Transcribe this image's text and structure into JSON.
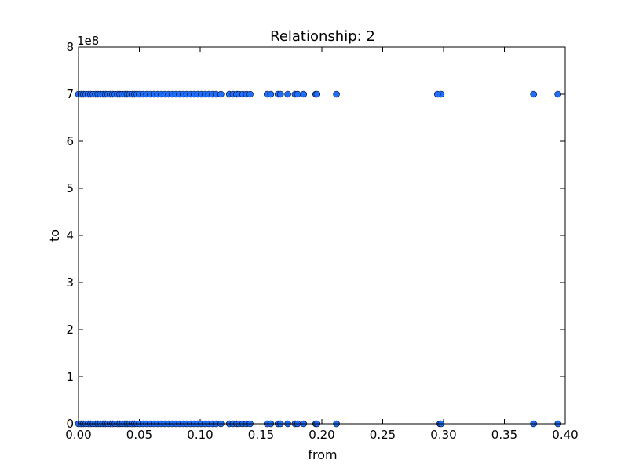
{
  "chart_data": {
    "type": "scatter",
    "title": "Relationship: 2",
    "xlabel": "from",
    "ylabel": "to",
    "offset_text": "1e8",
    "xlim": [
      0.0,
      0.4
    ],
    "ylim": [
      0,
      800000000
    ],
    "xticks": [
      "0.00",
      "0.05",
      "0.10",
      "0.15",
      "0.20",
      "0.25",
      "0.30",
      "0.35",
      "0.40"
    ],
    "yticks": [
      "0",
      "1",
      "2",
      "3",
      "4",
      "5",
      "6",
      "7",
      "8"
    ],
    "marker_color": "#1f6fff",
    "grid": false,
    "series": [
      {
        "x": [
          0.0,
          0.002,
          0.004,
          0.006,
          0.008,
          0.01,
          0.012,
          0.014,
          0.016,
          0.018,
          0.02,
          0.022,
          0.024,
          0.026,
          0.028,
          0.03,
          0.032,
          0.034,
          0.036,
          0.038,
          0.04,
          0.042,
          0.044,
          0.046,
          0.048,
          0.05,
          0.053,
          0.056,
          0.059,
          0.062,
          0.065,
          0.068,
          0.071,
          0.074,
          0.077,
          0.08,
          0.083,
          0.086,
          0.089,
          0.092,
          0.095,
          0.098,
          0.101,
          0.104,
          0.107,
          0.11,
          0.113,
          0.117,
          0.124,
          0.127,
          0.13,
          0.132,
          0.135,
          0.138,
          0.141,
          0.155,
          0.158,
          0.164,
          0.166,
          0.172,
          0.178,
          0.18,
          0.185,
          0.195,
          0.196,
          0.212,
          0.298,
          0.295,
          0.374,
          0.394,
          0.0,
          0.002,
          0.004,
          0.006,
          0.008,
          0.01,
          0.012,
          0.014,
          0.016,
          0.018,
          0.02,
          0.022,
          0.024,
          0.026,
          0.028,
          0.03,
          0.032,
          0.034,
          0.036,
          0.038,
          0.04,
          0.042,
          0.044,
          0.046,
          0.048,
          0.05,
          0.053,
          0.056,
          0.059,
          0.062,
          0.065,
          0.068,
          0.071,
          0.074,
          0.077,
          0.08,
          0.083,
          0.086,
          0.089,
          0.092,
          0.095,
          0.098,
          0.101,
          0.104,
          0.107,
          0.11,
          0.113,
          0.117,
          0.124,
          0.127,
          0.13,
          0.132,
          0.135,
          0.138,
          0.141,
          0.155,
          0.158,
          0.164,
          0.166,
          0.172,
          0.178,
          0.18,
          0.185,
          0.195,
          0.196,
          0.212,
          0.297,
          0.298,
          0.374,
          0.394
        ],
        "y": [
          700000000,
          700000000,
          700000000,
          700000000,
          700000000,
          700000000,
          700000000,
          700000000,
          700000000,
          700000000,
          700000000,
          700000000,
          700000000,
          700000000,
          700000000,
          700000000,
          700000000,
          700000000,
          700000000,
          700000000,
          700000000,
          700000000,
          700000000,
          700000000,
          700000000,
          700000000,
          700000000,
          700000000,
          700000000,
          700000000,
          700000000,
          700000000,
          700000000,
          700000000,
          700000000,
          700000000,
          700000000,
          700000000,
          700000000,
          700000000,
          700000000,
          700000000,
          700000000,
          700000000,
          700000000,
          700000000,
          700000000,
          700000000,
          700000000,
          700000000,
          700000000,
          700000000,
          700000000,
          700000000,
          700000000,
          700000000,
          700000000,
          700000000,
          700000000,
          700000000,
          700000000,
          700000000,
          700000000,
          700000000,
          700000000,
          700000000,
          700000000,
          700000000,
          700000000,
          700000000,
          0,
          0,
          0,
          0,
          0,
          0,
          0,
          0,
          0,
          0,
          0,
          0,
          0,
          0,
          0,
          0,
          0,
          0,
          0,
          0,
          0,
          0,
          0,
          0,
          0,
          0,
          0,
          0,
          0,
          0,
          0,
          0,
          0,
          0,
          0,
          0,
          0,
          0,
          0,
          0,
          0,
          0,
          0,
          0,
          0,
          0,
          0,
          0,
          0,
          0,
          0,
          0,
          0,
          0,
          0,
          0,
          0,
          0,
          0,
          0,
          0,
          0,
          0,
          0,
          0,
          0,
          0,
          0,
          0,
          0
        ]
      }
    ]
  }
}
